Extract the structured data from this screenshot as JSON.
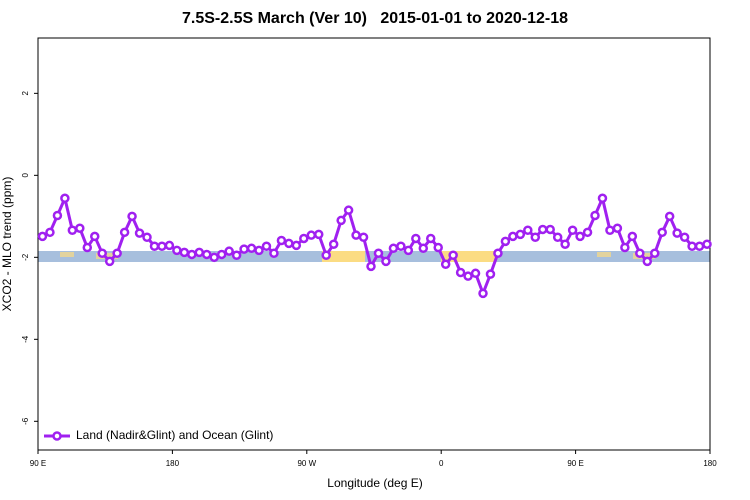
{
  "chart_data": {
    "type": "line",
    "title": "7.5S-2.5S March (Ver 10)   2015-01-01 to 2020-12-18",
    "x_label": "Longitude (deg E)",
    "y_label": "XCO2 - MLO trend (ppm)",
    "xlim": [
      90,
      540
    ],
    "ylim": [
      -6.7,
      3.35
    ],
    "xticks": [
      {
        "value": 90,
        "label": "90 E"
      },
      180,
      {
        "value": 270,
        "label": "90 W"
      },
      {
        "value": 360,
        "label": "0"
      },
      {
        "value": 450,
        "label": "90 E"
      },
      {
        "value": 540,
        "label": "180"
      }
    ],
    "yticks": [
      2,
      0,
      -2,
      -4,
      -6
    ],
    "legend_position": "bottom-left",
    "x": [
      93,
      98,
      103,
      108,
      113,
      118,
      123,
      128,
      133,
      138,
      143,
      148,
      153,
      158,
      163,
      168,
      173,
      178,
      183,
      188,
      193,
      198,
      203,
      208,
      213,
      218,
      223,
      228,
      233,
      238,
      243,
      248,
      253,
      258,
      263,
      268,
      273,
      278,
      283,
      288,
      293,
      298,
      303,
      308,
      313,
      318,
      323,
      328,
      333,
      338,
      343,
      348,
      353,
      358,
      363,
      368,
      373,
      378,
      383,
      388,
      393,
      398,
      403,
      408,
      413,
      418,
      423,
      428,
      433,
      438,
      443,
      448,
      453,
      458,
      463,
      468,
      473,
      478,
      483,
      488,
      493,
      498,
      503,
      508,
      513,
      518,
      523,
      528,
      533,
      538
    ],
    "series": [
      {
        "name": "Land (Nadir&Glint) and Ocean (Glint)",
        "color": "#a020f0",
        "values": [
          -1.49,
          -1.39,
          -0.98,
          -0.56,
          -1.34,
          -1.29,
          -1.76,
          -1.49,
          -1.9,
          -2.1,
          -1.9,
          -1.39,
          -1.0,
          -1.41,
          -1.51,
          -1.73,
          -1.73,
          -1.71,
          -1.83,
          -1.88,
          -1.93,
          -1.88,
          -1.93,
          -2.0,
          -1.93,
          -1.85,
          -1.95,
          -1.8,
          -1.78,
          -1.83,
          -1.73,
          -1.9,
          -1.59,
          -1.66,
          -1.71,
          -1.54,
          -1.46,
          -1.44,
          -1.95,
          -1.68,
          -1.1,
          -0.85,
          -1.46,
          -1.51,
          -2.22,
          -1.9,
          -2.1,
          -1.78,
          -1.73,
          -1.83,
          -1.54,
          -1.78,
          -1.54,
          -1.76,
          -2.17,
          -1.95,
          -2.37,
          -2.46,
          -2.39,
          -2.88,
          -2.41,
          -1.9,
          -1.61,
          -1.49,
          -1.44,
          -1.34,
          -1.51,
          -1.32,
          -1.32,
          -1.51,
          -1.68,
          -1.34,
          -1.49,
          -1.39,
          -0.98,
          -0.56,
          -1.34,
          -1.29,
          -1.76,
          -1.49,
          -1.9,
          -2.1,
          -1.9,
          -1.39,
          -1.0,
          -1.41,
          -1.51,
          -1.73,
          -1.73,
          -1.68
        ]
      }
    ]
  }
}
